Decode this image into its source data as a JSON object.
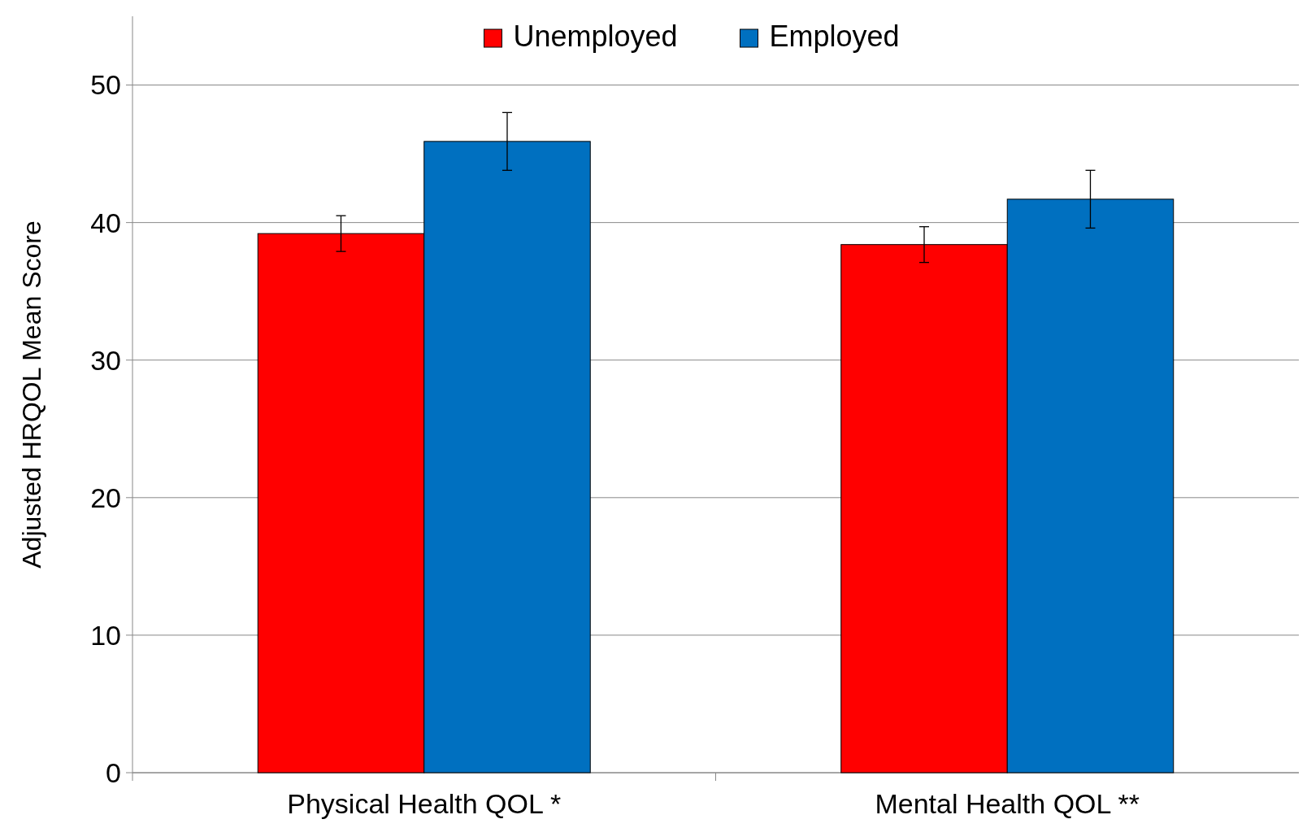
{
  "chart_data": {
    "type": "bar",
    "ylabel": "Adjusted HRQOL Mean Score",
    "categories": [
      "Physical Health QOL *",
      "Mental Health QOL **"
    ],
    "series": [
      {
        "name": "Unemployed",
        "color": "#ff0000",
        "values": [
          39.2,
          38.4
        ],
        "errors": [
          1.3,
          1.3
        ]
      },
      {
        "name": "Employed",
        "color": "#0070c0",
        "values": [
          45.9,
          41.7
        ],
        "errors": [
          2.1,
          2.1
        ]
      }
    ],
    "ylim": [
      0,
      55
    ],
    "yticks": [
      0,
      10,
      20,
      30,
      40,
      50
    ],
    "grid": "y",
    "legend": "top"
  }
}
